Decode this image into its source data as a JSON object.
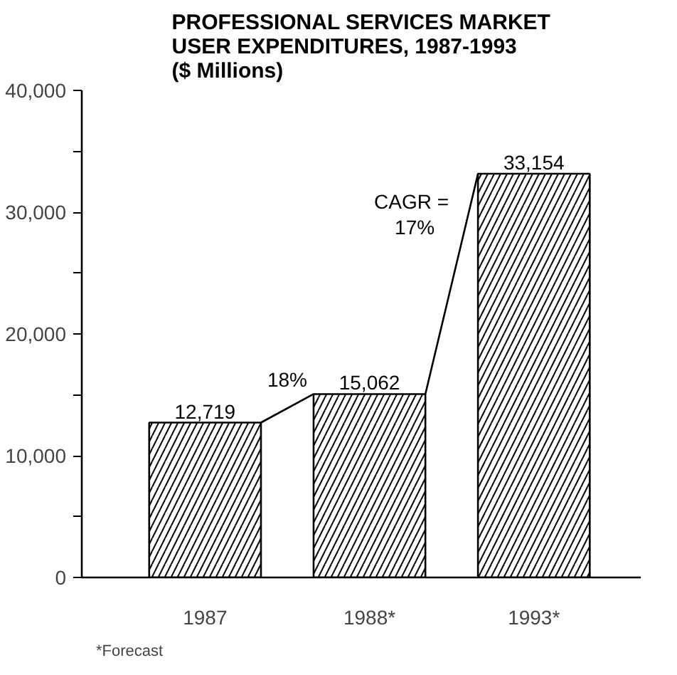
{
  "chart_data": {
    "type": "bar",
    "title": "PROFESSIONAL SERVICES MARKET\nUSER EXPENDITURES, 1987-1993\n($ Millions)",
    "categories": [
      "1987",
      "1988*",
      "1993*"
    ],
    "values": [
      12719,
      15062,
      33154
    ],
    "color": "#000000",
    "ylim": [
      0,
      40000
    ],
    "yticks": [
      0,
      {
        "value": 5000,
        "label": null
      },
      {
        "value": 10000,
        "label": "10,000"
      },
      {
        "value": 15000,
        "label": null
      },
      {
        "value": 20000,
        "label": "20,000"
      },
      {
        "value": 25000,
        "label": null
      },
      {
        "value": 30000,
        "label": "30,000"
      },
      {
        "value": 35000,
        "label": null
      },
      {
        "value": 40000,
        "label": "40,000"
      }
    ],
    "value_labels": [
      "12,719",
      "15,062",
      "33,154"
    ],
    "grid": false,
    "annotations": [
      {
        "text": "18%",
        "y": 13890
      },
      "CAGR =\n17%",
      "*Forecast"
    ]
  }
}
